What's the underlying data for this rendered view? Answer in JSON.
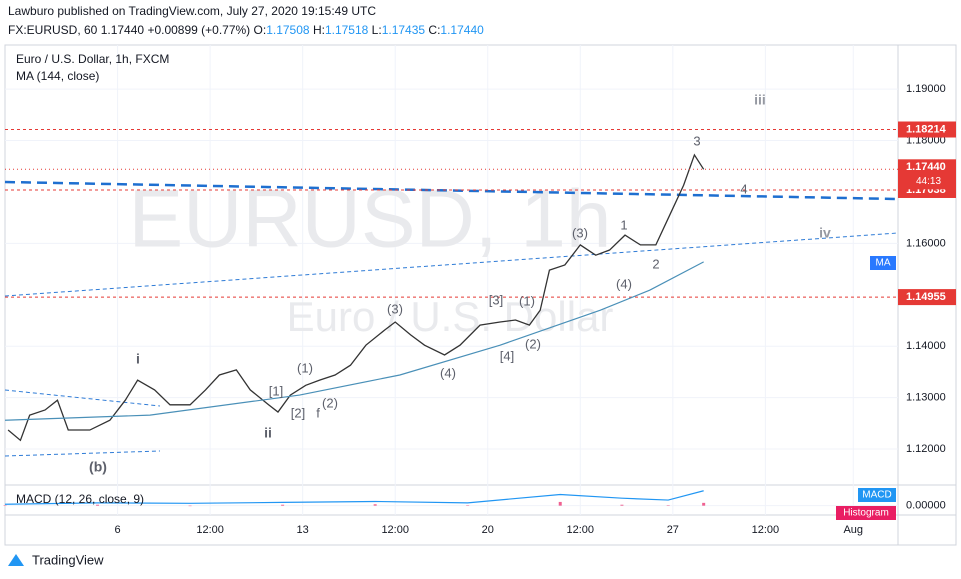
{
  "header": {
    "published": "Lawburo published on TradingView.com, July 27, 2020 19:15:49 UTC",
    "symbol": "FX:EURUSD, 60",
    "price": "1.17440",
    "change": "+0.00899 (+0.77%)",
    "o_label": "O:",
    "o": "1.17508",
    "h_label": "H:",
    "h": "1.17518",
    "l_label": "L:",
    "l": "1.17435",
    "c_label": "C:",
    "c": "1.17440"
  },
  "footer": {
    "brand": "TradingView"
  },
  "chart_data": [
    {
      "type": "line",
      "title": "Euro / U.S. Dollar, 1h, FXCM",
      "subtitle": "MA (144, close)",
      "watermark": [
        "EURUSD, 1h",
        "Euro / U.S. Dollar"
      ],
      "xlim": [
        0,
        579
      ],
      "ylim": [
        1.1134,
        1.1976
      ],
      "xticks": [
        {
          "value": 73,
          "label": "6"
        },
        {
          "value": 133,
          "label": "12:00"
        },
        {
          "value": 193,
          "label": "13"
        },
        {
          "value": 253,
          "label": "12:00"
        },
        {
          "value": 313,
          "label": "20"
        },
        {
          "value": 373,
          "label": "12:00"
        },
        {
          "value": 433,
          "label": "27"
        },
        {
          "value": 493,
          "label": "12:00"
        },
        {
          "value": 550,
          "label": "Aug"
        }
      ],
      "yticks": [
        {
          "value": 1.12,
          "label": "1.12000"
        },
        {
          "value": 1.13,
          "label": "1.13000"
        },
        {
          "value": 1.14,
          "label": "1.14000"
        },
        {
          "value": 1.16,
          "label": "1.16000"
        },
        {
          "value": 1.18,
          "label": "1.18000"
        },
        {
          "value": 1.19,
          "label": "1.19000"
        }
      ],
      "grid": true,
      "series": [
        {
          "name": "EURUSD",
          "color": "#333333",
          "x": [
            2,
            10,
            16,
            26,
            34,
            41,
            55,
            68,
            78,
            86,
            97,
            107,
            120,
            130,
            139,
            150,
            159,
            171,
            177,
            185,
            195,
            204,
            214,
            224,
            234,
            246,
            253,
            263,
            272,
            285,
            295,
            308,
            321,
            331,
            340,
            347,
            353,
            363,
            373,
            383,
            392,
            402,
            412,
            422,
            431,
            440,
            447,
            453
          ],
          "values": [
            1.1237,
            1.1217,
            1.1266,
            1.1276,
            1.1295,
            1.1237,
            1.1237,
            1.1256,
            1.1295,
            1.1334,
            1.1315,
            1.1286,
            1.1286,
            1.1315,
            1.1344,
            1.1354,
            1.1315,
            1.1286,
            1.1272,
            1.1305,
            1.1324,
            1.1334,
            1.1344,
            1.1363,
            1.1402,
            1.1431,
            1.1447,
            1.1422,
            1.1402,
            1.1383,
            1.1402,
            1.1441,
            1.1447,
            1.1451,
            1.1441,
            1.147,
            1.1548,
            1.1558,
            1.1597,
            1.1577,
            1.1587,
            1.1616,
            1.1597,
            1.1597,
            1.1655,
            1.1713,
            1.1772,
            1.1744
          ]
        },
        {
          "name": "MA",
          "color": "#4a90b8",
          "x": [
            0,
            94,
            191,
            256,
            321,
            386,
            418,
            453
          ],
          "values": [
            1.1256,
            1.1266,
            1.1305,
            1.1344,
            1.1402,
            1.147,
            1.1509,
            1.1564
          ]
        }
      ],
      "hlines": [
        1.18214,
        1.17038,
        1.14955
      ],
      "hline_color": "#e53935",
      "last_price": {
        "value": 1.1744,
        "label": "1.17440"
      },
      "countdown": "44:13",
      "ma_tag": "MA",
      "annotations": [
        "i",
        "ii",
        "(b)",
        "[1]",
        "[2]",
        "f",
        "(1)",
        "(2)",
        "(3)",
        "(4)",
        "[3]",
        "[4]",
        "(1)",
        "(2)",
        "(3)",
        "(4)",
        "1",
        "2",
        "3",
        "4",
        "iii",
        "iv"
      ]
    },
    {
      "type": "macd",
      "title": "MACD (12, 26, close, 9)",
      "ylim": [
        -0.002,
        0.004
      ],
      "yticks": [
        {
          "value": 0,
          "label": "0.00000"
        }
      ],
      "x": [
        0,
        60,
        120,
        180,
        240,
        300,
        360,
        400,
        430,
        453
      ],
      "series": [
        {
          "name": "MACD",
          "color": "#2196f3",
          "values": [
            0.0003,
            0.0006,
            0.0005,
            0.0007,
            0.0009,
            0.0006,
            0.0024,
            0.0016,
            0.0012,
            0.0032
          ]
        },
        {
          "name": "Histogram",
          "color": "#e91e63",
          "values": [
            0.0001,
            0.0002,
            -0.0001,
            0.0002,
            0.0003,
            0.0001,
            0.0008,
            0.0002,
            0.0001,
            0.0006
          ]
        }
      ]
    }
  ]
}
